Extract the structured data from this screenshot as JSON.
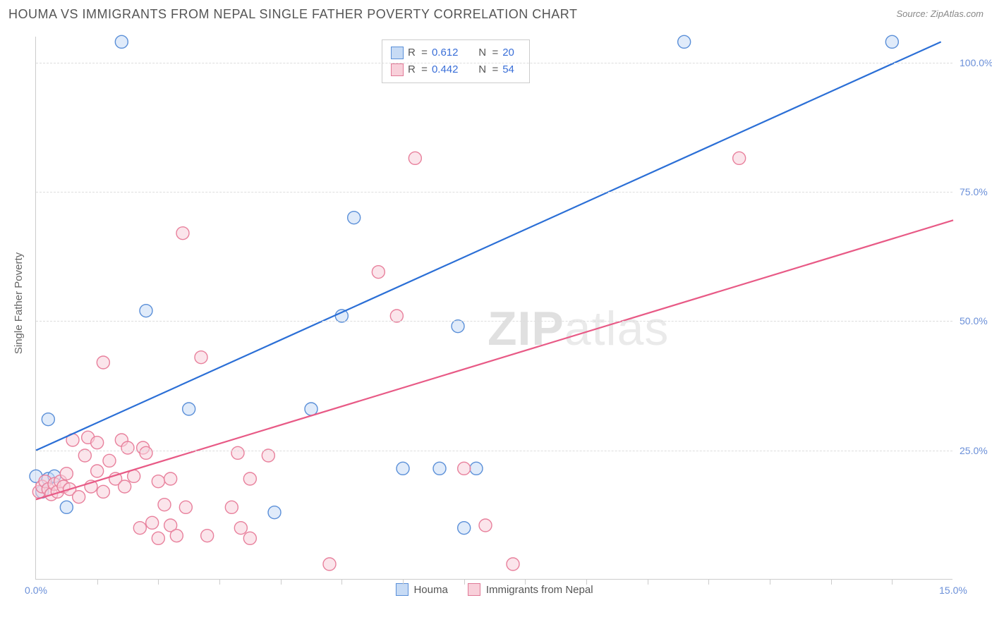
{
  "title": "HOUMA VS IMMIGRANTS FROM NEPAL SINGLE FATHER POVERTY CORRELATION CHART",
  "source_label": "Source: ZipAtlas.com",
  "axis": {
    "y_title": "Single Father Poverty",
    "x_min": 0.0,
    "x_max": 15.0,
    "y_min": 0.0,
    "y_max": 105.0,
    "x_ticks": [
      0.0,
      15.0
    ],
    "x_tick_labels": [
      "0.0%",
      "15.0%"
    ],
    "x_minor_ticks": [
      1,
      2,
      3,
      4,
      5,
      6,
      7,
      8,
      9,
      10,
      11,
      12,
      13,
      14
    ],
    "y_ticks": [
      25.0,
      50.0,
      75.0,
      100.0
    ],
    "y_tick_labels": [
      "25.0%",
      "50.0%",
      "75.0%",
      "100.0%"
    ],
    "grid_color": "#dddddd",
    "label_color": "#6a8fd8"
  },
  "watermark": {
    "text_bold": "ZIP",
    "text_light": "atlas"
  },
  "legend_stats": {
    "rows": [
      {
        "swatch_fill": "#c7dbf5",
        "swatch_stroke": "#5a8fd8",
        "r": "0.612",
        "n": "20"
      },
      {
        "swatch_fill": "#f8d0da",
        "swatch_stroke": "#e07a97",
        "r": "0.442",
        "n": "54"
      }
    ],
    "r_label": "R  = ",
    "n_label": "N  = "
  },
  "series_legend": [
    {
      "label": "Houma",
      "swatch_fill": "#c7dbf5",
      "swatch_stroke": "#5a8fd8"
    },
    {
      "label": "Immigrants from Nepal",
      "swatch_fill": "#f8d0da",
      "swatch_stroke": "#e07a97"
    }
  ],
  "chart": {
    "type": "scatter",
    "background": "#ffffff",
    "marker_radius": 9,
    "marker_opacity": 0.55,
    "line_width": 2.2,
    "series": [
      {
        "name": "Houma",
        "fill": "#c7dbf5",
        "stroke": "#5a8fd8",
        "line_color": "#2b6fd6",
        "trend": {
          "x1": 0.0,
          "y1": 25.0,
          "x2": 14.8,
          "y2": 104.0
        },
        "points": [
          [
            0.0,
            20.0
          ],
          [
            0.1,
            17.0
          ],
          [
            0.2,
            31.0
          ],
          [
            0.2,
            19.5
          ],
          [
            0.3,
            20.0
          ],
          [
            0.5,
            14.0
          ],
          [
            1.4,
            104.0
          ],
          [
            1.8,
            52.0
          ],
          [
            2.5,
            33.0
          ],
          [
            3.9,
            13.0
          ],
          [
            4.5,
            33.0
          ],
          [
            5.0,
            51.0
          ],
          [
            5.2,
            70.0
          ],
          [
            6.0,
            21.5
          ],
          [
            6.6,
            21.5
          ],
          [
            6.9,
            49.0
          ],
          [
            7.0,
            10.0
          ],
          [
            7.2,
            21.5
          ],
          [
            10.6,
            104.0
          ],
          [
            14.0,
            104.0
          ]
        ]
      },
      {
        "name": "Immigrants from Nepal",
        "fill": "#f8d0da",
        "stroke": "#e8809c",
        "line_color": "#e85a86",
        "trend": {
          "x1": 0.0,
          "y1": 15.5,
          "x2": 15.0,
          "y2": 69.5
        },
        "points": [
          [
            0.05,
            17.0
          ],
          [
            0.1,
            18.0
          ],
          [
            0.15,
            19.0
          ],
          [
            0.2,
            17.5
          ],
          [
            0.25,
            16.5
          ],
          [
            0.3,
            18.5
          ],
          [
            0.35,
            17.0
          ],
          [
            0.4,
            19.0
          ],
          [
            0.45,
            18.0
          ],
          [
            0.5,
            20.5
          ],
          [
            0.55,
            17.5
          ],
          [
            0.6,
            27.0
          ],
          [
            0.7,
            16.0
          ],
          [
            0.8,
            24.0
          ],
          [
            0.85,
            27.5
          ],
          [
            0.9,
            18.0
          ],
          [
            1.0,
            26.5
          ],
          [
            1.0,
            21.0
          ],
          [
            1.1,
            17.0
          ],
          [
            1.1,
            42.0
          ],
          [
            1.2,
            23.0
          ],
          [
            1.3,
            19.5
          ],
          [
            1.4,
            27.0
          ],
          [
            1.45,
            18.0
          ],
          [
            1.5,
            25.5
          ],
          [
            1.6,
            20.0
          ],
          [
            1.7,
            10.0
          ],
          [
            1.75,
            25.5
          ],
          [
            1.8,
            24.5
          ],
          [
            1.9,
            11.0
          ],
          [
            2.0,
            19.0
          ],
          [
            2.0,
            8.0
          ],
          [
            2.1,
            14.5
          ],
          [
            2.2,
            10.5
          ],
          [
            2.2,
            19.5
          ],
          [
            2.3,
            8.5
          ],
          [
            2.4,
            67.0
          ],
          [
            2.45,
            14.0
          ],
          [
            2.7,
            43.0
          ],
          [
            2.8,
            8.5
          ],
          [
            3.2,
            14.0
          ],
          [
            3.3,
            24.5
          ],
          [
            3.35,
            10.0
          ],
          [
            3.5,
            19.5
          ],
          [
            3.5,
            8.0
          ],
          [
            3.8,
            24.0
          ],
          [
            4.8,
            3.0
          ],
          [
            5.6,
            59.5
          ],
          [
            5.9,
            51.0
          ],
          [
            6.2,
            81.5
          ],
          [
            7.0,
            21.5
          ],
          [
            7.35,
            10.5
          ],
          [
            7.8,
            3.0
          ],
          [
            11.5,
            81.5
          ]
        ]
      }
    ]
  }
}
